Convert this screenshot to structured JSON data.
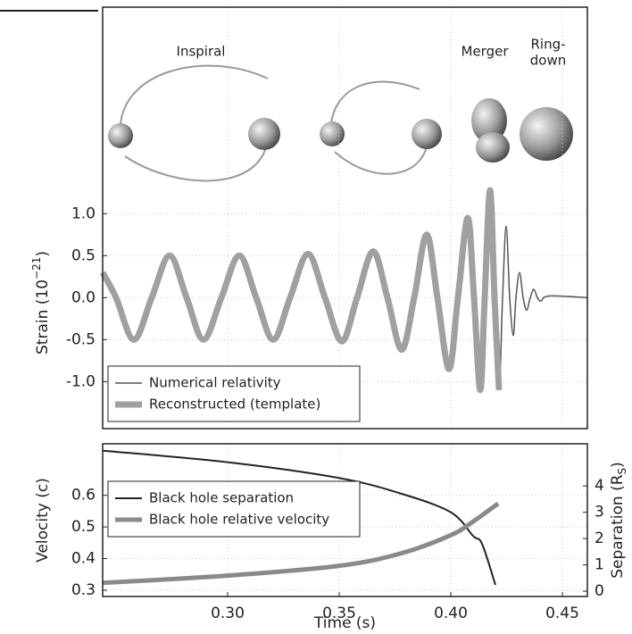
{
  "chart_data": [
    {
      "type": "line",
      "annotations": [
        "Inspiral",
        "Merger",
        "Ring-",
        "down"
      ],
      "ylabel": [
        "Strain (10",
        "−21",
        ")"
      ],
      "xlim": [
        0.244,
        0.4612
      ],
      "ylim": [
        -1.56,
        3.46
      ],
      "yticks": [
        {
          "value": 1.0,
          "label": "1.0"
        },
        0.5,
        {
          "value": 0.0,
          "label": "0.0"
        },
        -0.5,
        {
          "value": -1.0,
          "label": "-1.0"
        }
      ],
      "grid": true,
      "legend": "lower left",
      "series": [
        {
          "name": "Numerical relativity",
          "color": "#555555",
          "width": 1.5,
          "x": [
            0.244,
            0.25,
            0.258,
            0.266,
            0.274,
            0.2816,
            0.2892,
            0.2972,
            0.3052,
            0.3128,
            0.3204,
            0.328,
            0.336,
            0.3436,
            0.3512,
            0.358,
            0.3652,
            0.3716,
            0.378,
            0.3836,
            0.3892,
            0.394,
            0.3992,
            0.4032,
            0.4076,
            0.4104,
            0.4132,
            0.4152,
            0.4176,
            0.4196,
            0.4216,
            0.4232,
            0.4248,
            0.4264,
            0.428,
            0.4292,
            0.4308,
            0.4324,
            0.434,
            0.4356,
            0.4372,
            0.4388,
            0.4404,
            0.444,
            0.4612
          ],
          "values": [
            0.3,
            0.0,
            -0.5,
            0.0,
            0.5,
            0.0,
            -0.5,
            0.0,
            0.5,
            0.0,
            -0.5,
            0.0,
            0.52,
            0.0,
            -0.52,
            0.0,
            0.55,
            0.0,
            -0.62,
            0.0,
            0.75,
            0.0,
            -0.85,
            0.0,
            0.95,
            0.0,
            -1.1,
            0.0,
            1.28,
            0.0,
            -1.1,
            0.0,
            0.85,
            0.0,
            -0.45,
            0.0,
            0.3,
            0.0,
            -0.15,
            0.0,
            0.1,
            0.0,
            -0.04,
            0.02,
            0.0
          ]
        },
        {
          "name": "Reconstructed (template)",
          "color": "#a0a0a0",
          "width": 7,
          "x": [
            0.244,
            0.25,
            0.258,
            0.266,
            0.274,
            0.2816,
            0.2892,
            0.2972,
            0.3052,
            0.3128,
            0.3204,
            0.328,
            0.336,
            0.3436,
            0.3512,
            0.358,
            0.3652,
            0.3716,
            0.378,
            0.3836,
            0.3892,
            0.394,
            0.3992,
            0.4032,
            0.4076,
            0.4104,
            0.4132,
            0.4152,
            0.4176,
            0.4196,
            0.4216
          ],
          "values": [
            0.3,
            0.0,
            -0.5,
            0.0,
            0.5,
            0.0,
            -0.5,
            0.0,
            0.5,
            0.0,
            -0.5,
            0.0,
            0.52,
            0.0,
            -0.52,
            0.0,
            0.55,
            0.0,
            -0.62,
            0.0,
            0.75,
            0.0,
            -0.85,
            0.0,
            0.95,
            0.0,
            -1.1,
            0.0,
            1.28,
            0.0,
            -1.1
          ]
        }
      ]
    },
    {
      "type": "line",
      "xlabel": "Time (s)",
      "ylabel": [
        "Velocity (c)"
      ],
      "y2label": [
        "Separation (R",
        "S",
        ")"
      ],
      "xlim": [
        0.244,
        0.4612
      ],
      "ylim": [
        0.28,
        0.763
      ],
      "y2lim": [
        -0.2,
        5.6
      ],
      "xticks": [
        {
          "value": 0.3,
          "label": "0.30"
        },
        0.35,
        {
          "value": 0.4,
          "label": "0.40"
        },
        0.45
      ],
      "yticks": [
        0.3,
        0.4,
        0.5,
        0.6
      ],
      "y2ticks": [
        0,
        1,
        2,
        3,
        4
      ],
      "grid": true,
      "legend": "upper left",
      "series": [
        {
          "name": "Black hole separation",
          "color": "#222222",
          "width": 2,
          "axis": "y2",
          "x": [
            0.244,
            0.3,
            0.35,
            0.378,
            0.4,
            0.41,
            0.414,
            0.42
          ],
          "values": [
            5.34,
            4.9,
            4.3,
            3.7,
            3.0,
            2.1,
            1.8,
            0.24
          ]
        },
        {
          "name": "Black hole relative velocity",
          "color": "#8a8a8a",
          "width": 5,
          "x": [
            0.244,
            0.3,
            0.35,
            0.378,
            0.4,
            0.41,
            0.4212
          ],
          "values": [
            0.323,
            0.346,
            0.377,
            0.417,
            0.474,
            0.517,
            0.574
          ]
        }
      ]
    }
  ]
}
